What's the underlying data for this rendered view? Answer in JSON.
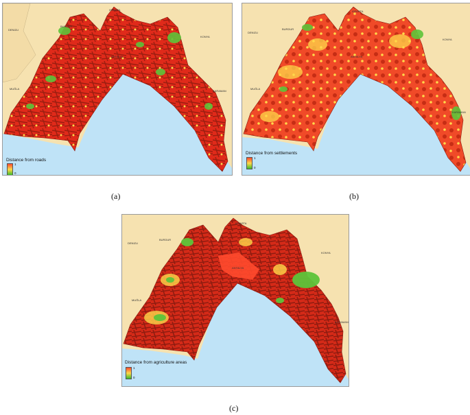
{
  "panels": [
    {
      "id": "a",
      "caption": "(a)",
      "legend": {
        "title": "Distance from roads",
        "max": "1",
        "min": "0"
      },
      "places": [
        "ISPARTA",
        "BURDUR",
        "DENIZLI",
        "KONYA",
        "MUĞLA",
        "ANTALYA",
        "KARAMAN"
      ]
    },
    {
      "id": "b",
      "caption": "(b)",
      "legend": {
        "title": "Distance from settlements",
        "max": "1",
        "min": "0"
      },
      "places": [
        "ISPARTA",
        "BURDUR",
        "DENIZLI",
        "KONYA",
        "MUĞLA",
        "ANTALYA",
        "KARAMAN"
      ]
    },
    {
      "id": "c",
      "caption": "(c)",
      "legend": {
        "title": "Distance from agriculture areas",
        "max": "1",
        "min": "0"
      },
      "places": [
        "ISPARTA",
        "BURDUR",
        "DENIZLI",
        "KONYA",
        "MUĞLA",
        "ANTALYA",
        "KARAMAN"
      ]
    }
  ],
  "colors": {
    "land": "#f6e2b0",
    "sea": "#bfe3f7",
    "high": "#ff4a2e",
    "mid": "#ffd84a",
    "low": "#3cba2a",
    "dense": "#b02515"
  }
}
